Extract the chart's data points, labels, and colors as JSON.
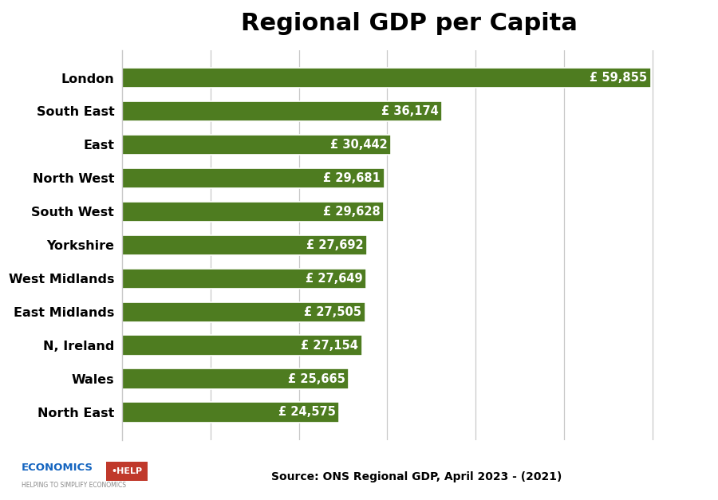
{
  "title": "Regional GDP per Capita",
  "title_fontsize": 22,
  "title_fontweight": "bold",
  "regions": [
    "London",
    "South East",
    "East",
    "North West",
    "South West",
    "Yorkshire",
    "West Midlands",
    "East Midlands",
    "N, Ireland",
    "Wales",
    "North East"
  ],
  "values": [
    59855,
    36174,
    30442,
    29681,
    29628,
    27692,
    27649,
    27505,
    27154,
    25665,
    24575
  ],
  "labels": [
    "£ 59,855",
    "£ 36,174",
    "£ 30,442",
    "£ 29,681",
    "£ 29,628",
    "£ 27,692",
    "£ 27,649",
    "£ 27,505",
    "£ 27,154",
    "£ 25,665",
    "£ 24,575"
  ],
  "bar_color": "#4e7c20",
  "text_color": "#ffffff",
  "label_fontsize": 10.5,
  "ylabel_fontsize": 11.5,
  "source_text": "Source: ONS Regional GDP, April 2023 - (2021)",
  "source_fontsize": 10,
  "xlim": [
    0,
    65000
  ],
  "background_color": "#ffffff",
  "grid_color": "#c8c8c8",
  "economics_text": "ECONOMICS",
  "help_text": "•HELP",
  "tagline": "HELPING TO SIMPLIFY ECONOMICS"
}
